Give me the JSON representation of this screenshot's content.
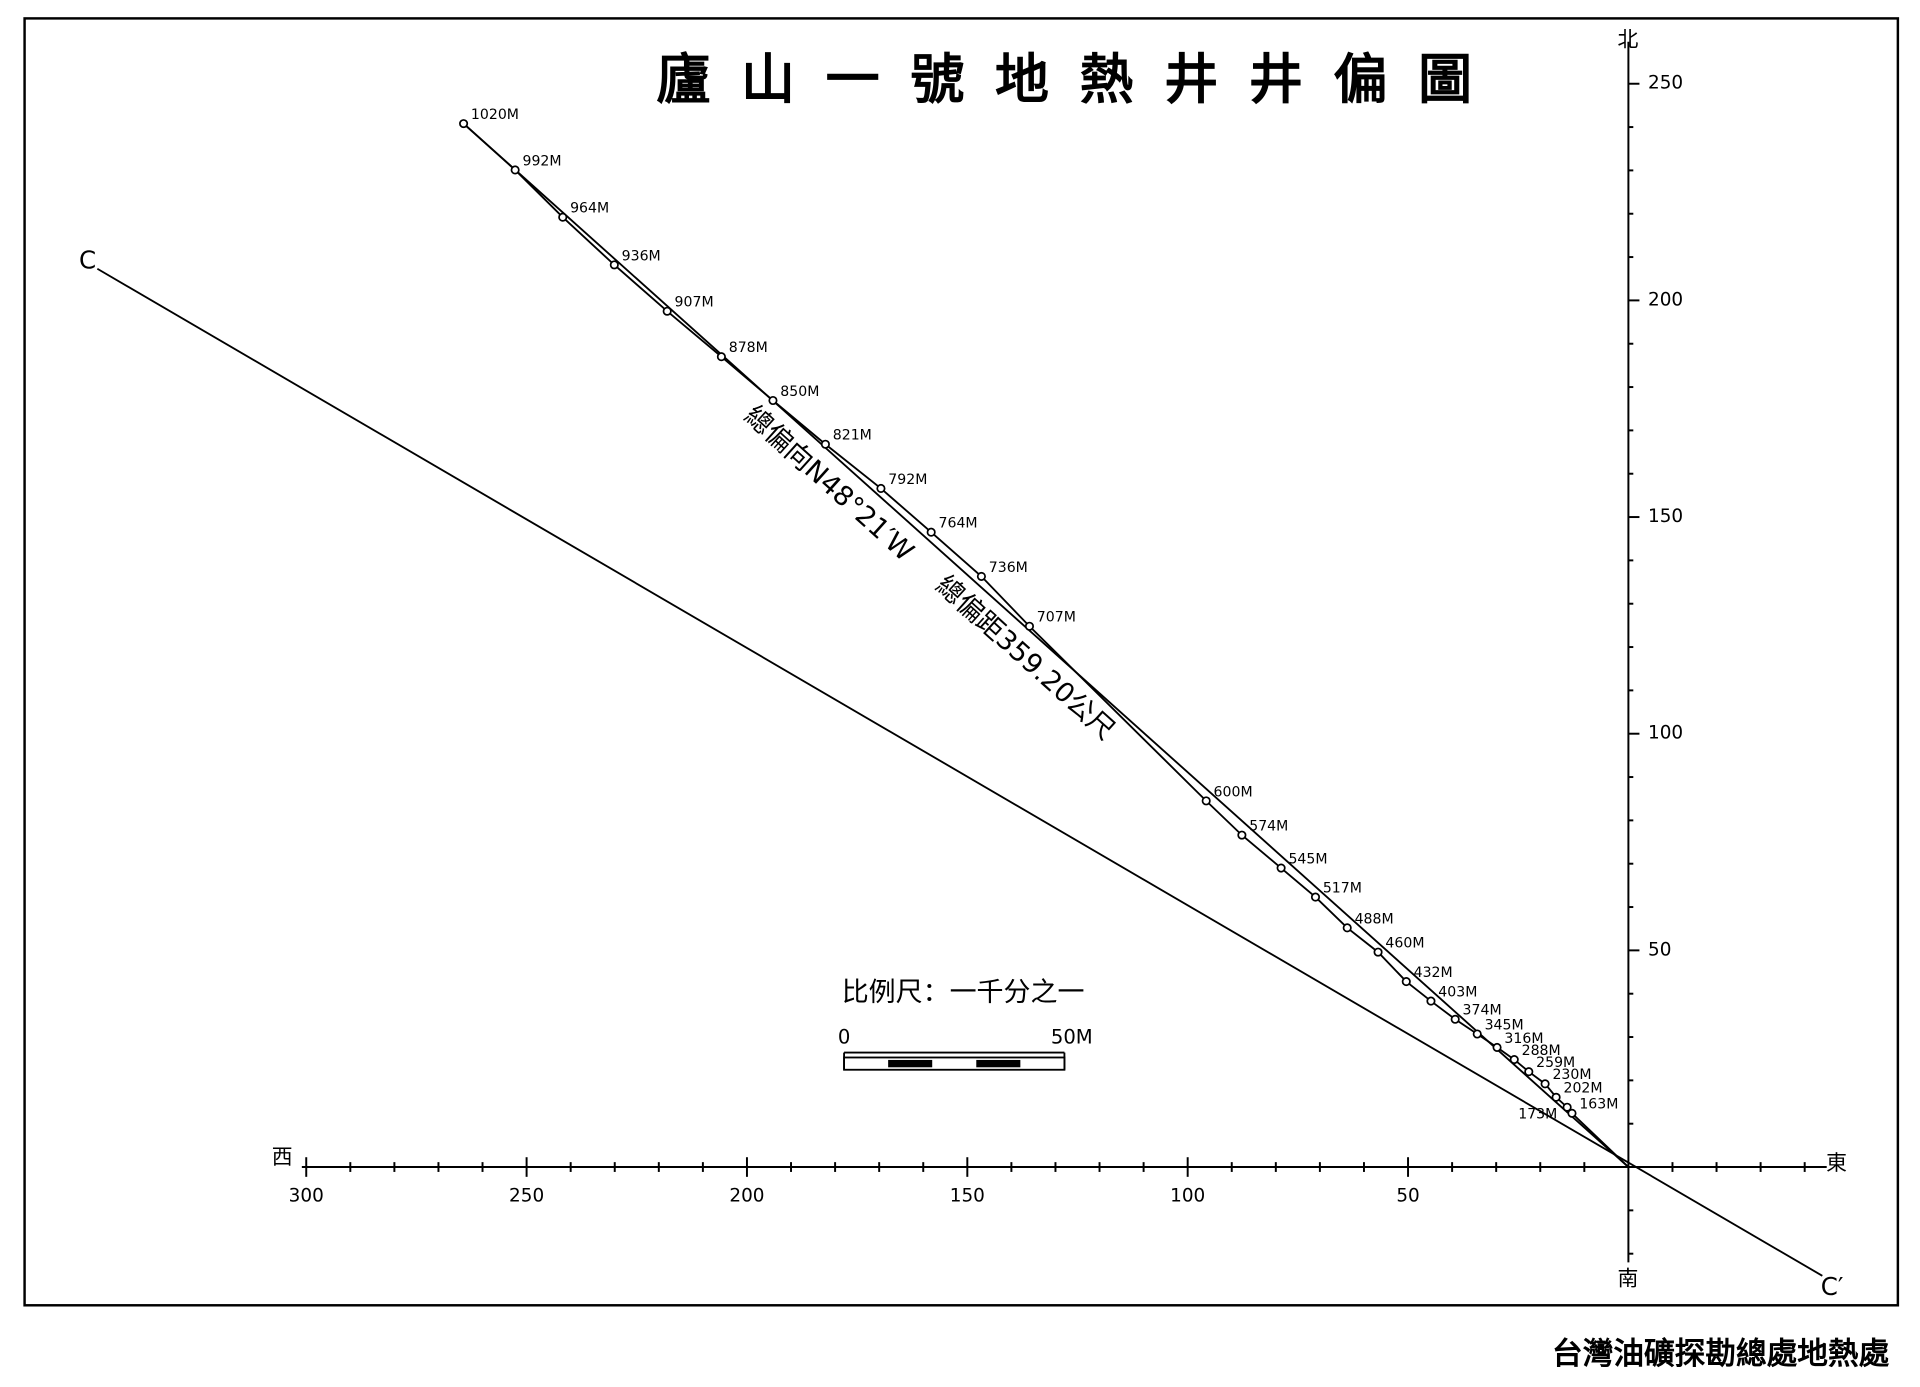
{
  "chart_data": {
    "type": "line",
    "title": "廬山一號地熱井井偏圖",
    "direction_labels": {
      "north": "北",
      "south": "南",
      "west": "西",
      "east": "東"
    },
    "x": [
      12.8,
      13.9,
      16.4,
      18.9,
      22.6,
      25.9,
      29.8,
      34.3,
      39.3,
      44.8,
      50.4,
      56.8,
      63.8,
      71.0,
      78.8,
      87.7,
      95.8,
      135.9,
      146.8,
      158.2,
      169.6,
      182.2,
      194.1,
      205.8,
      218.1,
      230.1,
      241.8,
      252.6,
      264.3
    ],
    "values": [
      12.4,
      13.8,
      16.1,
      19.2,
      22.0,
      24.8,
      27.6,
      30.7,
      34.1,
      38.3,
      42.8,
      49.6,
      55.2,
      62.3,
      69.0,
      76.6,
      84.5,
      124.8,
      136.3,
      146.5,
      156.6,
      166.8,
      176.9,
      187.0,
      197.5,
      208.2,
      219.2,
      230.1,
      240.8
    ],
    "point_labels": [
      "163M",
      "173M",
      "202M",
      "230M",
      "259M",
      "288M",
      "316M",
      "345M",
      "374M",
      "403M",
      "432M",
      "460M",
      "488M",
      "517M",
      "545M",
      "574M",
      "600M",
      "707M",
      "736M",
      "764M",
      "792M",
      "821M",
      "850M",
      "878M",
      "907M",
      "936M",
      "964M",
      "992M",
      "1020M"
    ],
    "xlim": [
      -45,
      301
    ],
    "ylim": [
      -22,
      258
    ],
    "xticks": [
      50,
      100,
      150,
      200,
      250,
      300
    ],
    "yticks": [
      50,
      100,
      150,
      200,
      250
    ],
    "xminorticks": [
      -40,
      -30,
      -20,
      -10,
      10,
      20,
      30,
      40,
      60,
      70,
      80,
      90,
      110,
      120,
      130,
      140,
      160,
      170,
      180,
      190,
      210,
      220,
      230,
      240,
      260,
      270,
      280,
      290
    ],
    "yminorticks": [
      -20,
      -10,
      10,
      20,
      30,
      40,
      60,
      70,
      80,
      90,
      110,
      120,
      130,
      140,
      160,
      170,
      180,
      190,
      210,
      220,
      230,
      240
    ],
    "section_line": {
      "labels": [
        "C",
        "C′"
      ],
      "x": [
        347.4,
        -44.0
      ],
      "y": [
        207.3,
        -25.1
      ]
    },
    "annotations": [
      "總偏向N48°21′W",
      "總偏距359.20公尺"
    ],
    "scale_bar": {
      "label": "比例尺：一千分之一",
      "ticks": [
        0,
        {
          "value": 50,
          "label": "50M"
        }
      ]
    },
    "footer": "台灣油礦探勘總處地熱處"
  }
}
